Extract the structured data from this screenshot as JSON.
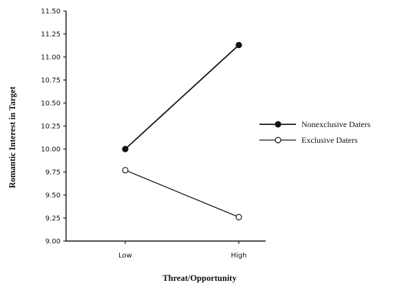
{
  "chart_data": {
    "type": "line",
    "title": "",
    "xlabel": "Threat/Opportunity",
    "ylabel": "Romantic Interest in Target",
    "categories": [
      "Low",
      "High"
    ],
    "ylim": [
      9.0,
      11.5
    ],
    "yticks": [
      "9.00",
      "9.25",
      "9.50",
      "9.75",
      "10.00",
      "10.25",
      "10.50",
      "10.75",
      "11.00",
      "11.25",
      "11.50"
    ],
    "grid": false,
    "legend_position": "right",
    "series": [
      {
        "name": "Nonexclusive Daters",
        "values": [
          10.0,
          11.13
        ],
        "marker": "filled-circle",
        "color": "#111111"
      },
      {
        "name": "Exclusive Daters",
        "values": [
          9.77,
          9.26
        ],
        "marker": "open-circle",
        "color": "#111111"
      }
    ]
  }
}
